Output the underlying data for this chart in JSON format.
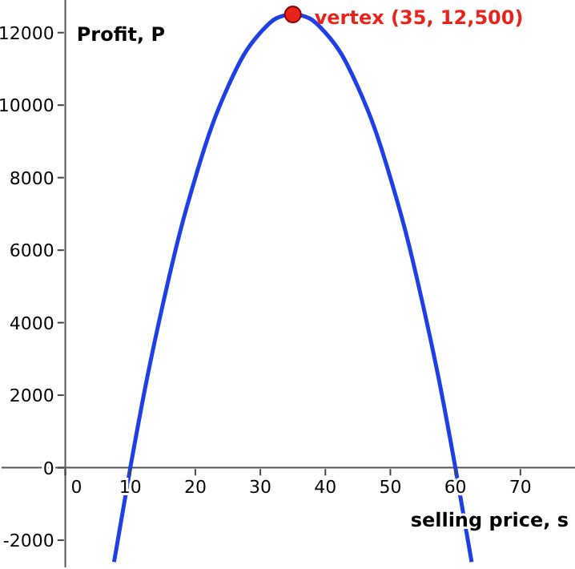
{
  "chart_data": {
    "type": "line",
    "xlabel": "selling price, s",
    "ylabel": "Profit, P",
    "xlim": [
      -9.8,
      78.4
    ],
    "ylim": [
      -2750,
      12900
    ],
    "xticks": [
      0,
      10,
      20,
      30,
      40,
      50,
      60,
      70
    ],
    "yticks": [
      -2000,
      0,
      2000,
      4000,
      6000,
      8000,
      10000,
      12000
    ],
    "grid": false,
    "series": [
      {
        "color": "#1f3fe6",
        "marker": "none",
        "x": [
          7.5,
          10,
          12.5,
          15,
          17.5,
          20,
          22.5,
          25,
          27.5,
          30,
          32.5,
          35,
          37.5,
          40,
          42.5,
          45,
          47.5,
          50,
          52.5,
          55,
          57.5,
          60,
          62.5
        ],
        "values": [
          -2600,
          0,
          2400,
          4500,
          6400,
          8000,
          9400,
          10500,
          11400,
          12000,
          12400,
          12500,
          12400,
          12000,
          11400,
          10500,
          9400,
          8000,
          6400,
          4500,
          2400,
          0,
          -2600
        ]
      },
      {
        "type": "scatter",
        "color": "#e8231b",
        "marker": "circle",
        "x": [
          35
        ],
        "values": [
          12500
        ]
      }
    ],
    "annotations": [
      {
        "text": "vertex (35, 12,500)",
        "x": 35,
        "y": 12500
      }
    ]
  }
}
